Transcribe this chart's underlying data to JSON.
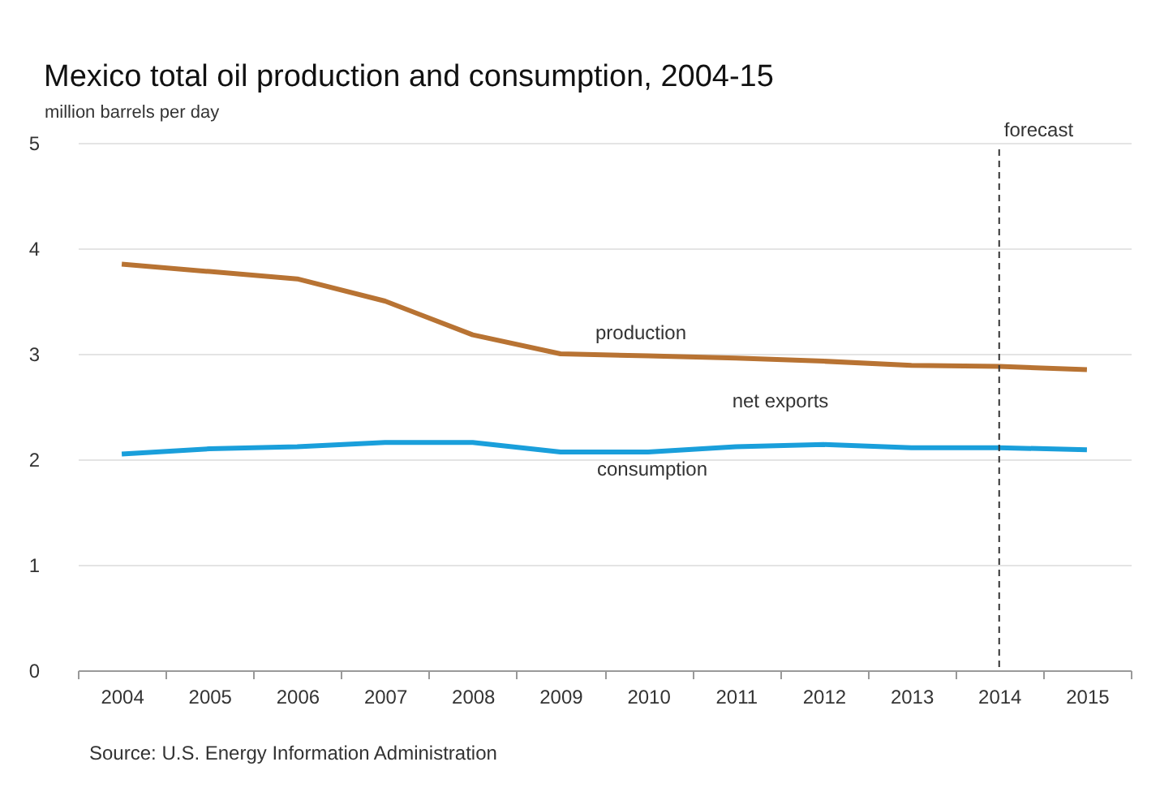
{
  "chart_data": {
    "type": "line",
    "title": "Mexico total oil production and consumption, 2004-15",
    "ylabel": "million barrels per day",
    "categories": [
      "2004",
      "2005",
      "2006",
      "2007",
      "2008",
      "2009",
      "2010",
      "2011",
      "2012",
      "2013",
      "2014",
      "2015"
    ],
    "series": [
      {
        "name": "production",
        "color": "#b87333",
        "values": [
          3.85,
          3.78,
          3.71,
          3.5,
          3.18,
          3.0,
          2.98,
          2.96,
          2.93,
          2.89,
          2.88,
          2.85
        ]
      },
      {
        "name": "consumption",
        "color": "#1a9fdb",
        "values": [
          2.05,
          2.1,
          2.12,
          2.16,
          2.16,
          2.07,
          2.07,
          2.12,
          2.14,
          2.11,
          2.11,
          2.09
        ]
      }
    ],
    "ylim": [
      0,
      5
    ],
    "yticks": [
      0,
      1,
      2,
      3,
      4,
      5
    ],
    "grid": "y",
    "ref_lines": [
      {
        "axis": "x",
        "value": "2014",
        "label": "forecast",
        "line_style": "dashed"
      }
    ],
    "annotations": [
      "net exports",
      "Source: U.S. Energy Information Administration"
    ]
  }
}
